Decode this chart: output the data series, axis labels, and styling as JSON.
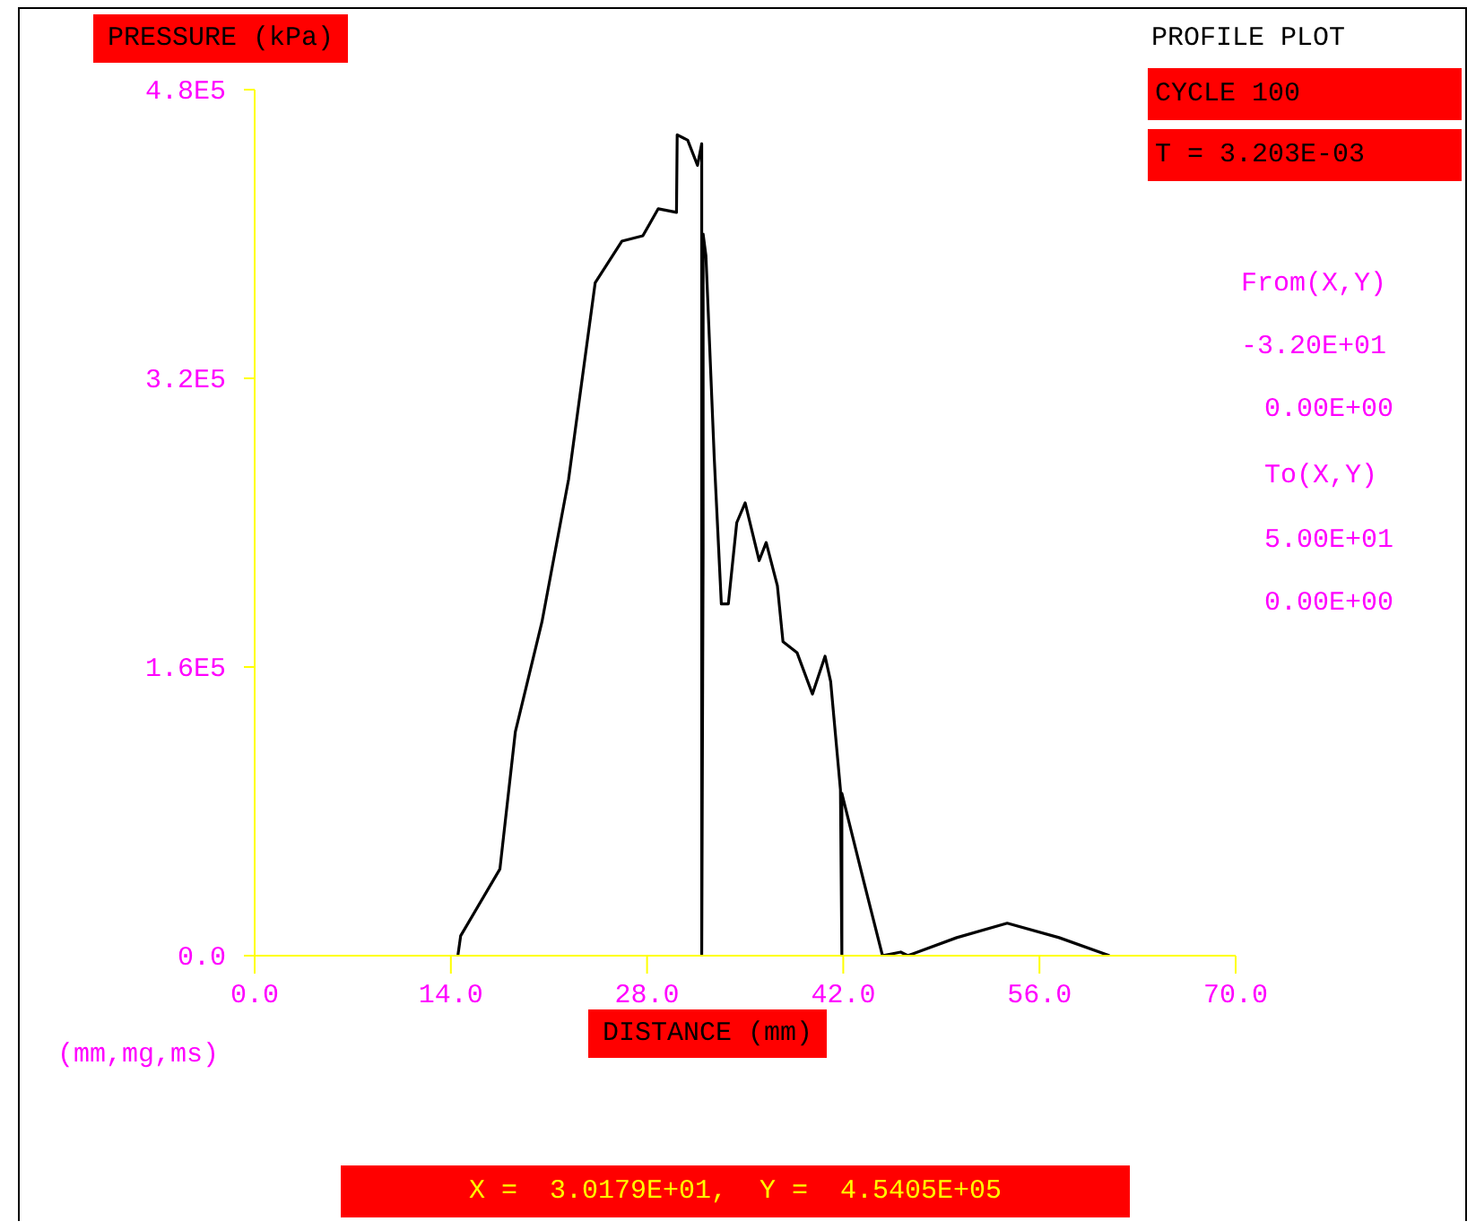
{
  "chart_data": {
    "type": "line",
    "title": "PROFILE PLOT",
    "xlabel": "DISTANCE (mm)",
    "ylabel": "PRESSURE (kPa)",
    "annotations": [
      "CYCLE 100",
      "T = 3.203E-03",
      "From(X,Y)",
      "-3.20E+01",
      "0.00E+00",
      "To(X,Y)",
      "5.00E+01",
      "0.00E+00",
      "(mm,mg,ms)",
      "X =  3.0179E+01,  Y =  4.5405E+05"
    ],
    "xlim": [
      0,
      70
    ],
    "ylim": [
      0,
      480000
    ],
    "xticks": [
      {
        "value": 0,
        "label": "0.0"
      },
      {
        "value": 14,
        "label": "14.0"
      },
      {
        "value": 28,
        "label": "28.0"
      },
      {
        "value": 42,
        "label": "42.0"
      },
      {
        "value": 56,
        "label": "56.0"
      },
      {
        "value": 70,
        "label": "70.0"
      }
    ],
    "yticks": [
      {
        "value": 0,
        "label": "0.0"
      },
      {
        "value": 160000,
        "label": "1.6E5"
      },
      {
        "value": 320000,
        "label": "3.2E5"
      },
      {
        "value": 480000,
        "label": "4.8E5"
      }
    ],
    "grid": false,
    "legend": false,
    "series": [
      {
        "color": "#000000",
        "x": [
          14.5,
          14.7,
          17.5,
          18.6,
          20.5,
          22.4,
          24.3,
          26.2,
          27.7,
          28.8,
          30.1,
          30.15,
          30.9,
          31.6,
          31.9,
          31.9,
          32.0,
          32.0,
          32.2,
          32.8,
          33.3,
          33.8,
          34.4,
          35.0,
          36.0,
          36.5,
          37.3,
          37.7,
          38.7,
          39.8,
          40.7,
          41.1,
          41.8,
          41.9,
          41.9,
          43.5,
          44.8,
          46.1,
          46.6,
          50.1,
          53.7,
          57.4,
          61.0
        ],
        "values": [
          0,
          11000,
          48000,
          124000,
          185000,
          264000,
          373000,
          396000,
          399000,
          414000,
          412000,
          455000,
          452000,
          438000,
          450000,
          0,
          225000,
          400000,
          388000,
          275000,
          195000,
          195000,
          240000,
          251000,
          219000,
          229000,
          205000,
          174000,
          168000,
          145000,
          166000,
          152000,
          92000,
          0,
          90000,
          40000,
          0,
          2000,
          0,
          10000,
          18000,
          10000,
          0
        ]
      }
    ]
  }
}
